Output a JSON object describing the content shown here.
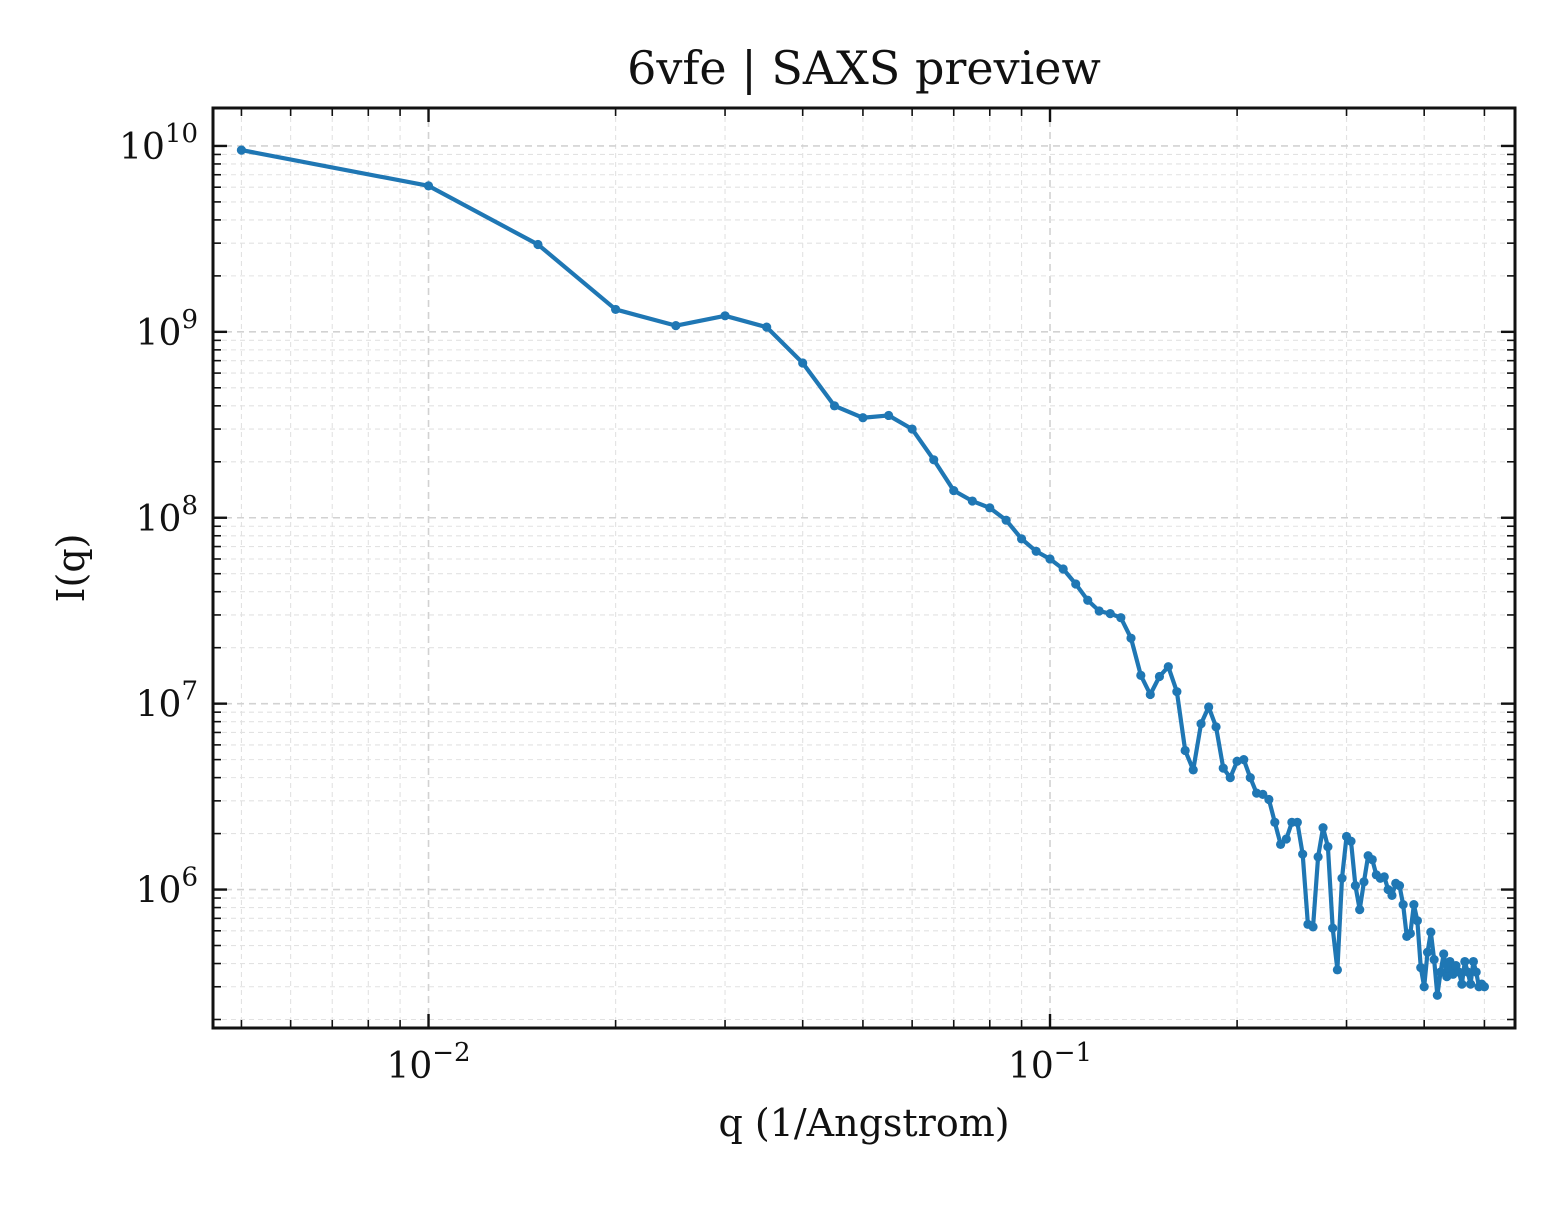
{
  "chart_data": {
    "type": "line",
    "title": "6vfe | SAXS preview",
    "xlabel": "q (1/Angstrom)",
    "ylabel": "I(q)",
    "xscale": "log",
    "yscale": "log",
    "xlim": [
      0.0045,
      0.56
    ],
    "ylim": [
      180000,
      16000000000
    ],
    "grid": true,
    "x_ticks": [
      {
        "value": 0.01,
        "base": "10",
        "exp": "−2"
      },
      {
        "value": 0.1,
        "base": "10",
        "exp": "−1"
      }
    ],
    "y_ticks": [
      {
        "value": 1000000,
        "base": "10",
        "exp": "6"
      },
      {
        "value": 10000000,
        "base": "10",
        "exp": "7"
      },
      {
        "value": 100000000,
        "base": "10",
        "exp": "8"
      },
      {
        "value": 1000000000,
        "base": "10",
        "exp": "9"
      },
      {
        "value": 10000000000,
        "base": "10",
        "exp": "10"
      }
    ],
    "series": [
      {
        "color": "#1f77b4",
        "x": [
          0.005,
          0.01,
          0.015,
          0.02,
          0.025,
          0.03,
          0.035,
          0.04,
          0.045,
          0.05,
          0.055,
          0.06,
          0.065,
          0.07,
          0.075,
          0.08,
          0.085,
          0.09,
          0.095,
          0.1,
          0.105,
          0.11,
          0.115,
          0.12,
          0.125,
          0.13,
          0.135,
          0.14,
          0.145,
          0.15,
          0.155,
          0.16,
          0.165,
          0.17,
          0.175,
          0.18,
          0.185,
          0.19,
          0.195,
          0.2,
          0.205,
          0.21,
          0.215,
          0.22,
          0.225,
          0.23,
          0.235,
          0.24,
          0.245,
          0.25,
          0.255,
          0.26,
          0.265,
          0.27,
          0.275,
          0.28,
          0.285,
          0.29,
          0.295,
          0.3,
          0.305,
          0.31,
          0.315,
          0.32,
          0.325,
          0.33,
          0.335,
          0.34,
          0.345,
          0.35,
          0.355,
          0.36,
          0.365,
          0.37,
          0.375,
          0.38,
          0.385,
          0.39,
          0.395,
          0.4,
          0.405,
          0.41,
          0.415,
          0.42,
          0.425,
          0.43,
          0.435,
          0.44,
          0.445,
          0.45,
          0.455,
          0.46,
          0.465,
          0.47,
          0.475,
          0.48,
          0.485,
          0.49,
          0.495,
          0.5
        ],
        "y": [
          9500000000,
          6100000000,
          2950000000,
          1320000000,
          1080000000,
          1220000000,
          1060000000,
          680000000,
          400000000,
          345000000,
          355000000,
          300000000,
          205000000,
          140000000,
          123000000,
          113000000,
          97000000,
          77000000,
          66000000,
          60000000,
          53000000,
          44000000,
          36000000,
          31500000,
          30500000,
          29000000,
          22500000,
          14200000,
          11200000,
          14000000,
          15800000,
          11600000,
          5600000,
          4400000,
          7800000,
          9600000,
          7500000,
          4500000,
          4000000,
          4900000,
          5000000,
          4000000,
          3300000,
          3250000,
          3050000,
          2300000,
          1750000,
          1870000,
          2300000,
          2300000,
          1550000,
          650000,
          630000,
          1500000,
          2150000,
          1700000,
          620000,
          370000,
          1150000,
          1930000,
          1820000,
          1050000,
          780000,
          1100000,
          1520000,
          1450000,
          1200000,
          1150000,
          1170000,
          1000000,
          930000,
          1080000,
          1050000,
          830000,
          560000,
          580000,
          830000,
          680000,
          380000,
          300000,
          460000,
          590000,
          420000,
          270000,
          360000,
          450000,
          340000,
          410000,
          350000,
          390000,
          360000,
          310000,
          410000,
          360000,
          310000,
          410000,
          360000,
          300000,
          310000,
          300000
        ]
      }
    ]
  }
}
